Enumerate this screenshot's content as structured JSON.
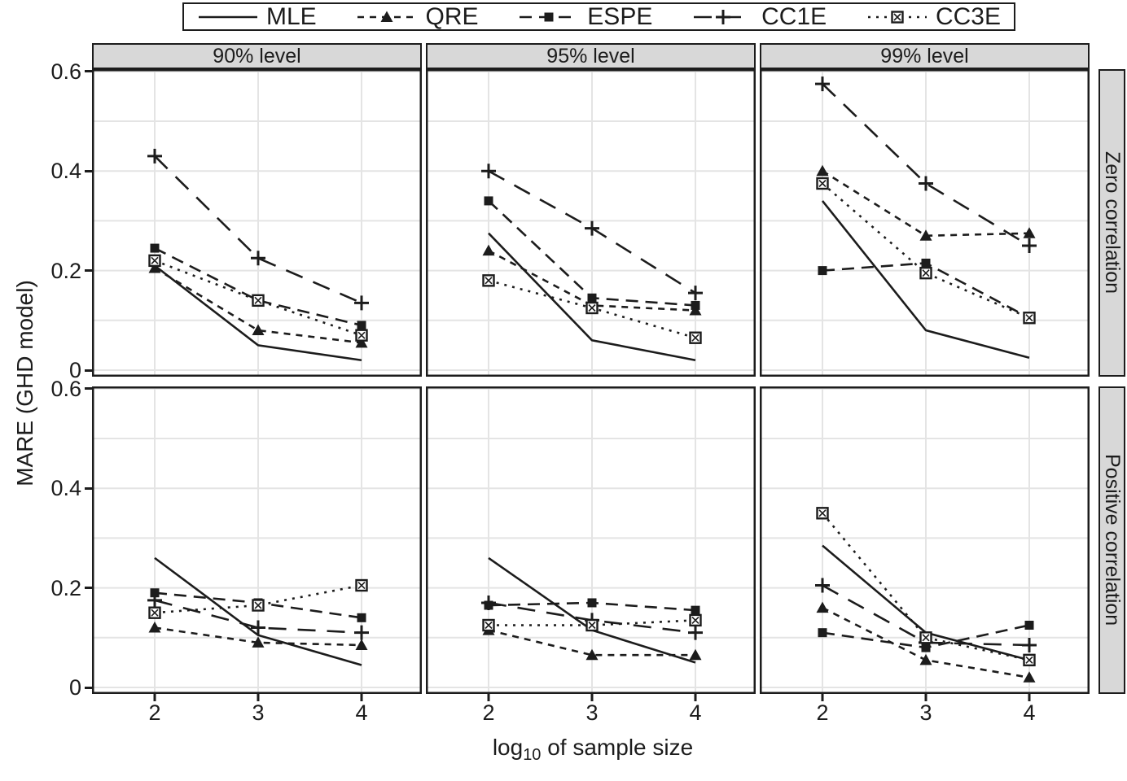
{
  "chart_data": {
    "type": "line",
    "title": "",
    "x": [
      2,
      3,
      4
    ],
    "xlabel": "log10 of sample size",
    "xlabel_parts": {
      "base": "log",
      "sub": "10",
      "rest": " of sample size"
    },
    "ylabel": "MARE (GHD model)",
    "ylim": [
      0,
      0.6
    ],
    "yticks": [
      0,
      0.2,
      0.4,
      0.6
    ],
    "ytick_labels": [
      "0",
      "0.2",
      "0.4",
      "0.6"
    ],
    "xtick_labels": [
      "2",
      "3",
      "4"
    ],
    "grid_y": [
      0,
      0.1,
      0.2,
      0.3,
      0.4,
      0.5,
      0.6
    ],
    "grid_on": true,
    "col_facets": [
      "90% level",
      "95% level",
      "99% level"
    ],
    "row_facets": [
      "Zero correlation",
      "Positive correlation"
    ],
    "legend": {
      "position": "top",
      "entries": [
        {
          "label": "MLE",
          "dash": "",
          "marker": "none"
        },
        {
          "label": "QRE",
          "dash": "8,7",
          "marker": "triangle"
        },
        {
          "label": "ESPE",
          "dash": "15,9",
          "marker": "square"
        },
        {
          "label": "CC1E",
          "dash": "22,14",
          "marker": "plus"
        },
        {
          "label": "CC3E",
          "dash": "3,7",
          "marker": "crossed-square"
        }
      ]
    },
    "panels": [
      {
        "id": "zero-90",
        "row_facet": "Zero correlation",
        "col_facet": "90% level",
        "series": [
          {
            "name": "MLE",
            "values": [
              0.21,
              0.05,
              0.02
            ]
          },
          {
            "name": "QRE",
            "values": [
              0.205,
              0.08,
              0.055
            ]
          },
          {
            "name": "ESPE",
            "values": [
              0.245,
              0.14,
              0.09
            ]
          },
          {
            "name": "CC1E",
            "values": [
              0.43,
              0.225,
              0.135
            ]
          },
          {
            "name": "CC3E",
            "values": [
              0.22,
              0.14,
              0.07
            ]
          }
        ]
      },
      {
        "id": "zero-95",
        "row_facet": "Zero correlation",
        "col_facet": "95% level",
        "series": [
          {
            "name": "MLE",
            "values": [
              0.275,
              0.06,
              0.02
            ]
          },
          {
            "name": "QRE",
            "values": [
              0.24,
              0.13,
              0.12
            ]
          },
          {
            "name": "ESPE",
            "values": [
              0.34,
              0.145,
              0.13
            ]
          },
          {
            "name": "CC1E",
            "values": [
              0.4,
              0.285,
              0.155
            ]
          },
          {
            "name": "CC3E",
            "values": [
              0.18,
              0.125,
              0.065
            ]
          }
        ]
      },
      {
        "id": "zero-99",
        "row_facet": "Zero correlation",
        "col_facet": "99% level",
        "series": [
          {
            "name": "MLE",
            "values": [
              0.34,
              0.08,
              0.025
            ]
          },
          {
            "name": "QRE",
            "values": [
              0.4,
              0.27,
              0.275
            ]
          },
          {
            "name": "ESPE",
            "values": [
              0.2,
              0.215,
              0.105
            ]
          },
          {
            "name": "CC1E",
            "values": [
              0.575,
              0.375,
              0.25
            ]
          },
          {
            "name": "CC3E",
            "values": [
              0.375,
              0.195,
              0.105
            ]
          }
        ]
      },
      {
        "id": "positive-90",
        "row_facet": "Positive correlation",
        "col_facet": "90% level",
        "series": [
          {
            "name": "MLE",
            "values": [
              0.26,
              0.105,
              0.045
            ]
          },
          {
            "name": "QRE",
            "values": [
              0.12,
              0.09,
              0.085
            ]
          },
          {
            "name": "ESPE",
            "values": [
              0.19,
              0.17,
              0.14
            ]
          },
          {
            "name": "CC1E",
            "values": [
              0.175,
              0.12,
              0.11
            ]
          },
          {
            "name": "CC3E",
            "values": [
              0.15,
              0.165,
              0.205
            ]
          }
        ]
      },
      {
        "id": "positive-95",
        "row_facet": "Positive correlation",
        "col_facet": "95% level",
        "series": [
          {
            "name": "MLE",
            "values": [
              0.26,
              0.115,
              0.05
            ]
          },
          {
            "name": "QRE",
            "values": [
              0.115,
              0.065,
              0.065
            ]
          },
          {
            "name": "ESPE",
            "values": [
              0.165,
              0.17,
              0.155
            ]
          },
          {
            "name": "CC1E",
            "values": [
              0.17,
              0.135,
              0.11
            ]
          },
          {
            "name": "CC3E",
            "values": [
              0.125,
              0.125,
              0.135
            ]
          }
        ]
      },
      {
        "id": "positive-99",
        "row_facet": "Positive correlation",
        "col_facet": "99% level",
        "series": [
          {
            "name": "MLE",
            "values": [
              0.285,
              0.11,
              0.055
            ]
          },
          {
            "name": "QRE",
            "values": [
              0.16,
              0.055,
              0.02
            ]
          },
          {
            "name": "ESPE",
            "values": [
              0.11,
              0.08,
              0.125
            ]
          },
          {
            "name": "CC1E",
            "values": [
              0.205,
              0.09,
              0.085
            ]
          },
          {
            "name": "CC3E",
            "values": [
              0.35,
              0.1,
              0.055
            ]
          }
        ]
      }
    ],
    "colors": {
      "line": "#1c1c1c",
      "grid": "#e4e4e4",
      "strip_background": "#d8d8d8",
      "panel_border": "#1c1c1c",
      "background": "#ffffff"
    }
  }
}
